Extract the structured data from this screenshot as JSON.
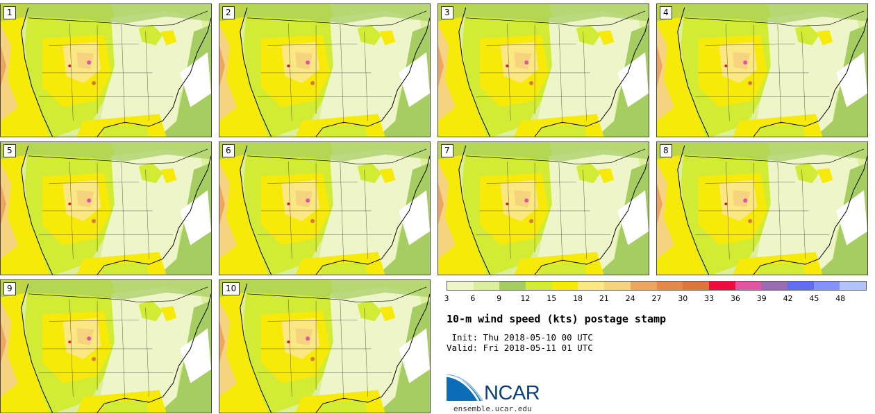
{
  "panels": [
    "1",
    "2",
    "3",
    "4",
    "5",
    "6",
    "7",
    "8",
    "9",
    "10"
  ],
  "colorbar": {
    "colors": [
      "#eef6c9",
      "#dcef9c",
      "#a5cd61",
      "#d2ec35",
      "#f8ea08",
      "#fce882",
      "#f6d37f",
      "#eda55f",
      "#e4894a",
      "#dc763a",
      "#ee0c3f",
      "#e255a3",
      "#9a6ab2",
      "#626ef2",
      "#8591fd",
      "#b2c3fc"
    ],
    "tick_labels": [
      "3",
      "6",
      "9",
      "12",
      "15",
      "18",
      "21",
      "24",
      "27",
      "30",
      "33",
      "36",
      "39",
      "42",
      "45",
      "48"
    ]
  },
  "title": "10-m wind speed (kts) postage stamp",
  "init": " Init: Thu 2018-05-10 00 UTC",
  "valid": "Valid: Fri 2018-05-11 01 UTC",
  "logo": {
    "name": "NCAR",
    "url": "ensemble.ucar.edu"
  }
}
